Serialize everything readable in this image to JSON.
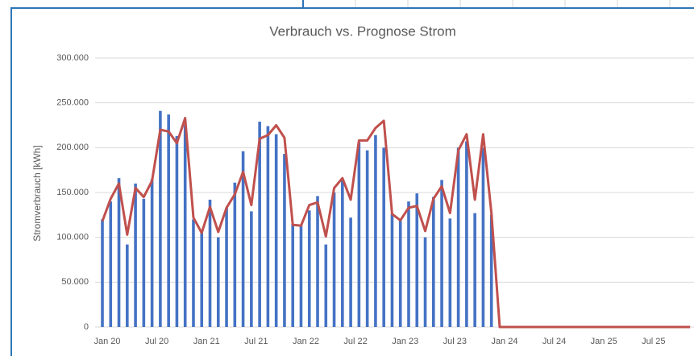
{
  "chart_data": {
    "type": "bar",
    "title": "Verbrauch vs. Prognose Strom",
    "y_label": "Stromverbrauch [kWh]",
    "categories": [
      "Jan 20",
      null,
      null,
      null,
      null,
      null,
      "Jul 20",
      null,
      null,
      null,
      null,
      null,
      "Jan 21",
      null,
      null,
      null,
      null,
      null,
      "Jul 21",
      null,
      null,
      null,
      null,
      null,
      "Jan 22",
      null,
      null,
      null,
      null,
      null,
      "Jul 22",
      null,
      null,
      null,
      null,
      null,
      "Jan 23",
      null,
      null,
      null,
      null,
      null,
      "Jul 23",
      null,
      null,
      null,
      null,
      null,
      "Jan 24",
      null,
      null,
      null,
      null,
      null,
      "Jul 24",
      null,
      null,
      null,
      null,
      null,
      "Jan 25",
      null,
      null,
      null,
      null,
      null,
      "Jul 25",
      null,
      null,
      null,
      null,
      null
    ],
    "series": [
      {
        "type": "bar",
        "color": "#4472c4",
        "values": [
          120000,
          140000,
          166000,
          92000,
          160000,
          143000,
          165000,
          241000,
          237000,
          213000,
          225000,
          120000,
          108000,
          142000,
          100000,
          133000,
          161000,
          196000,
          129000,
          229000,
          224000,
          215000,
          193000,
          115000,
          113000,
          130000,
          146000,
          92000,
          150000,
          165000,
          122000,
          206000,
          197000,
          214000,
          200000,
          126000,
          120000,
          140000,
          149000,
          100000,
          145000,
          164000,
          121000,
          200000,
          207000,
          127000,
          200000,
          125000,
          null,
          null,
          null,
          null,
          null,
          null,
          null,
          null,
          null,
          null,
          null,
          null,
          null,
          null,
          null,
          null,
          null,
          null,
          null,
          null,
          null,
          null,
          null,
          null
        ]
      },
      {
        "type": "line",
        "color": "#c0504d",
        "values": [
          118000,
          143000,
          160000,
          103000,
          155000,
          145000,
          163000,
          220000,
          218000,
          205000,
          233000,
          122000,
          105000,
          134000,
          106000,
          133000,
          148000,
          173000,
          136000,
          210000,
          214000,
          225000,
          211000,
          114000,
          113000,
          136000,
          139000,
          101000,
          155000,
          166000,
          142000,
          208000,
          208000,
          222000,
          230000,
          126000,
          119000,
          133000,
          135000,
          107000,
          143000,
          157000,
          127000,
          197000,
          215000,
          142000,
          215000,
          127000,
          0,
          0,
          0,
          0,
          0,
          0,
          0,
          0,
          0,
          0,
          0,
          0,
          0,
          0,
          0,
          0,
          0,
          0,
          0,
          0,
          0,
          0,
          0,
          0
        ]
      }
    ],
    "ylim": [
      0,
      300000
    ],
    "yticks": [
      0,
      {
        "value": 50000,
        "label": "50.000"
      },
      {
        "value": 100000,
        "label": "100.000"
      },
      {
        "value": 150000,
        "label": "150.000"
      },
      {
        "value": 200000,
        "label": "200.000"
      },
      {
        "value": 250000,
        "label": "250.000"
      },
      {
        "value": 300000,
        "label": "300.000"
      }
    ],
    "grid": true
  }
}
